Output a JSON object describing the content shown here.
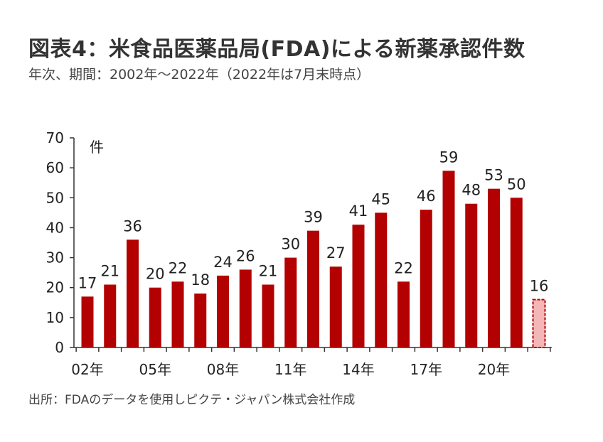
{
  "header": {
    "title": "図表4：米食品医薬品局(FDA)による新薬承認件数",
    "subtitle": "年次、期間：2002年～2022年（2022年は7月末時点）"
  },
  "footer": {
    "source": "出所：FDAのデータを使用しピクテ・ジャパン株式会社作成"
  },
  "colors": {
    "bar": "#b30000",
    "partial_bar_fill": "#f4b6b6",
    "partial_bar_border": "#b30000",
    "axis": "#333333"
  },
  "chart_data": {
    "type": "bar",
    "title": "米食品医薬品局(FDA)による新薬承認件数",
    "xlabel": "",
    "ylabel": "件",
    "ylim": [
      0,
      70
    ],
    "yticks": [
      0,
      10,
      20,
      30,
      40,
      50,
      60,
      70
    ],
    "categories": [
      "2002",
      "2003",
      "2004",
      "2005",
      "2006",
      "2007",
      "2008",
      "2009",
      "2010",
      "2011",
      "2012",
      "2013",
      "2014",
      "2015",
      "2016",
      "2017",
      "2018",
      "2019",
      "2020",
      "2021",
      "2022"
    ],
    "values": [
      17,
      21,
      36,
      20,
      22,
      18,
      24,
      26,
      21,
      30,
      39,
      27,
      41,
      45,
      22,
      46,
      59,
      48,
      53,
      50,
      16
    ],
    "partial": [
      false,
      false,
      false,
      false,
      false,
      false,
      false,
      false,
      false,
      false,
      false,
      false,
      false,
      false,
      false,
      false,
      false,
      false,
      false,
      false,
      true
    ],
    "x_tick_labels": [
      {
        "index": 0,
        "label": "02年"
      },
      {
        "index": 3,
        "label": "05年"
      },
      {
        "index": 6,
        "label": "08年"
      },
      {
        "index": 9,
        "label": "11年"
      },
      {
        "index": 12,
        "label": "14年"
      },
      {
        "index": 15,
        "label": "17年"
      },
      {
        "index": 18,
        "label": "20年"
      }
    ],
    "grid": false,
    "legend": "none"
  }
}
